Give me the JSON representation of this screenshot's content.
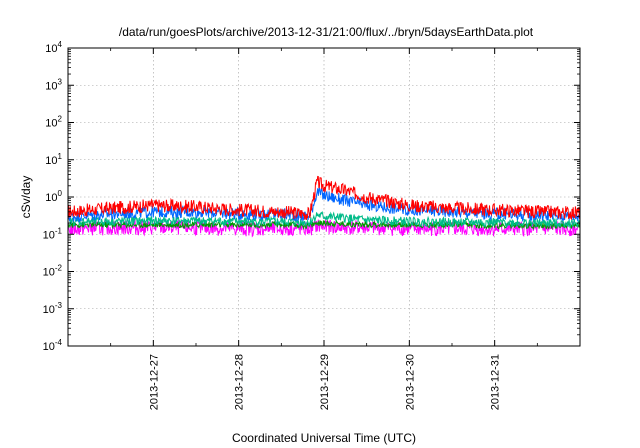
{
  "chart_data": {
    "type": "line",
    "title": "/data/run/goesPlots/archive/2013-12-31/21:00/flux/../bryn/5daysEarthData.plot",
    "xlabel": "Coordinated Universal Time (UTC)",
    "ylabel": "cSv/day",
    "yscale": "log",
    "ylim": [
      0.0001,
      10000
    ],
    "xlim": [
      "2013-12-26T00:00",
      "2014-01-01T00:00"
    ],
    "grid": true,
    "x_ticks": [
      "2013-12-27",
      "2013-12-28",
      "2013-12-29",
      "2013-12-30",
      "2013-12-31"
    ],
    "y_ticks": [
      {
        "base": "10",
        "exp": "-4"
      },
      {
        "base": "10",
        "exp": "-3"
      },
      {
        "base": "10",
        "exp": "-2"
      },
      {
        "base": "10",
        "exp": "-1"
      },
      {
        "base": "10",
        "exp": "0"
      },
      {
        "base": "10",
        "exp": "1"
      },
      {
        "base": "10",
        "exp": "2"
      },
      {
        "base": "10",
        "exp": "3"
      },
      {
        "base": "10",
        "exp": "4"
      }
    ],
    "x": [
      "2013-12-26T00:00",
      "2013-12-26T12:00",
      "2013-12-27T00:00",
      "2013-12-27T12:00",
      "2013-12-28T00:00",
      "2013-12-28T12:00",
      "2013-12-28T20:00",
      "2013-12-28T22:00",
      "2013-12-29T00:00",
      "2013-12-29T06:00",
      "2013-12-29T12:00",
      "2013-12-30T00:00",
      "2013-12-30T12:00",
      "2013-12-31T00:00",
      "2013-12-31T12:00",
      "2014-01-01T00:00"
    ],
    "series": [
      {
        "color": "#ff0000",
        "values": [
          0.4,
          0.5,
          0.6,
          0.55,
          0.45,
          0.4,
          0.35,
          2.5,
          2.0,
          1.5,
          1.0,
          0.6,
          0.5,
          0.45,
          0.4,
          0.38
        ]
      },
      {
        "color": "#0066ff",
        "values": [
          0.3,
          0.35,
          0.4,
          0.4,
          0.35,
          0.35,
          0.3,
          1.4,
          1.1,
          0.8,
          0.6,
          0.45,
          0.4,
          0.35,
          0.33,
          0.32
        ]
      },
      {
        "color": "#00bb88",
        "values": [
          0.22,
          0.22,
          0.23,
          0.23,
          0.22,
          0.22,
          0.21,
          0.33,
          0.3,
          0.27,
          0.24,
          0.22,
          0.21,
          0.21,
          0.2,
          0.2
        ]
      },
      {
        "color": "#009900",
        "values": [
          0.18,
          0.18,
          0.18,
          0.18,
          0.18,
          0.18,
          0.17,
          0.2,
          0.2,
          0.19,
          0.18,
          0.18,
          0.18,
          0.17,
          0.17,
          0.17
        ]
      },
      {
        "color": "#ff00ff",
        "values": [
          0.14,
          0.15,
          0.15,
          0.15,
          0.14,
          0.14,
          0.14,
          0.17,
          0.16,
          0.15,
          0.15,
          0.14,
          0.14,
          0.14,
          0.14,
          0.14
        ]
      }
    ]
  }
}
